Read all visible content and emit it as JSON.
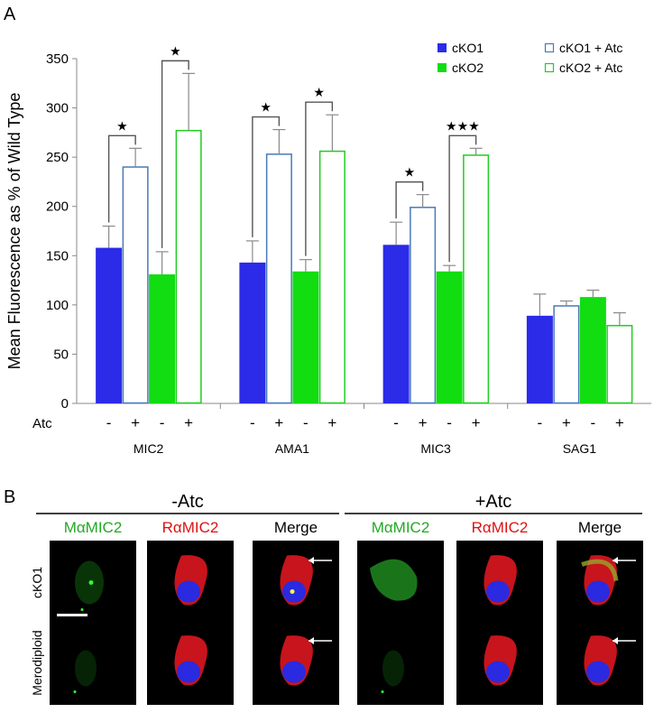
{
  "panel_a": {
    "letter": "A"
  },
  "panel_b": {
    "letter": "B",
    "groups": [
      "-Atc",
      "+Atc"
    ],
    "columns": [
      "MαMIC2",
      "RαMIC2",
      "Merge",
      "MαMIC2",
      "RαMIC2",
      "Merge"
    ],
    "column_colors": [
      "#22aa22",
      "#dd1111",
      "#000000",
      "#22aa22",
      "#dd1111",
      "#000000"
    ],
    "rows": [
      "cKO1",
      "Merodiploid"
    ],
    "cells": [
      [
        "green-dim",
        "red-blue",
        "merge",
        "green-bright",
        "red-blue",
        "merge-bright"
      ],
      [
        "green-faint",
        "red-blue",
        "merge",
        "green-faint",
        "red-blue",
        "merge"
      ]
    ],
    "arrow_columns": [
      2,
      5
    ],
    "scale_bar_cell": [
      0,
      0
    ]
  },
  "chart_data": {
    "type": "bar",
    "ylabel": "Mean Fluorescence as % of Wild Type",
    "ylim": [
      0,
      350
    ],
    "yticks": [
      0,
      50,
      100,
      150,
      200,
      250,
      300,
      350
    ],
    "grid": false,
    "legend_position": "top-right",
    "categories": [
      "MIC2",
      "AMA1",
      "MIC3",
      "SAG1"
    ],
    "treatment_row_label": "Atc",
    "treatment_marks": [
      "-",
      "+",
      "-",
      "+"
    ],
    "series": [
      {
        "name": "cKO1",
        "fill": "#2b2be8",
        "stroke": "#2b2be8",
        "filled": true,
        "values": [
          158,
          143,
          161,
          89
        ],
        "errors": [
          22,
          22,
          23,
          22
        ]
      },
      {
        "name": "cKO1 + Atc",
        "fill": "#ffffff",
        "stroke": "#4a7ab8",
        "filled": false,
        "values": [
          240,
          253,
          199,
          99
        ],
        "errors": [
          19,
          25,
          13,
          5
        ]
      },
      {
        "name": "cKO2",
        "fill": "#11dd11",
        "stroke": "#11dd11",
        "filled": true,
        "values": [
          131,
          134,
          134,
          108
        ],
        "errors": [
          23,
          12,
          6,
          7
        ]
      },
      {
        "name": "cKO2 + Atc",
        "fill": "#ffffff",
        "stroke": "#22cc22",
        "filled": false,
        "values": [
          277,
          256,
          252,
          79
        ],
        "errors": [
          58,
          37,
          7,
          13
        ]
      }
    ],
    "significance": [
      {
        "category": 0,
        "pair": [
          0,
          1
        ],
        "label": "★"
      },
      {
        "category": 0,
        "pair": [
          2,
          3
        ],
        "label": "★"
      },
      {
        "category": 1,
        "pair": [
          0,
          1
        ],
        "label": "★"
      },
      {
        "category": 1,
        "pair": [
          2,
          3
        ],
        "label": "★"
      },
      {
        "category": 2,
        "pair": [
          0,
          1
        ],
        "label": "★"
      },
      {
        "category": 2,
        "pair": [
          2,
          3
        ],
        "label": "★★★"
      }
    ]
  }
}
